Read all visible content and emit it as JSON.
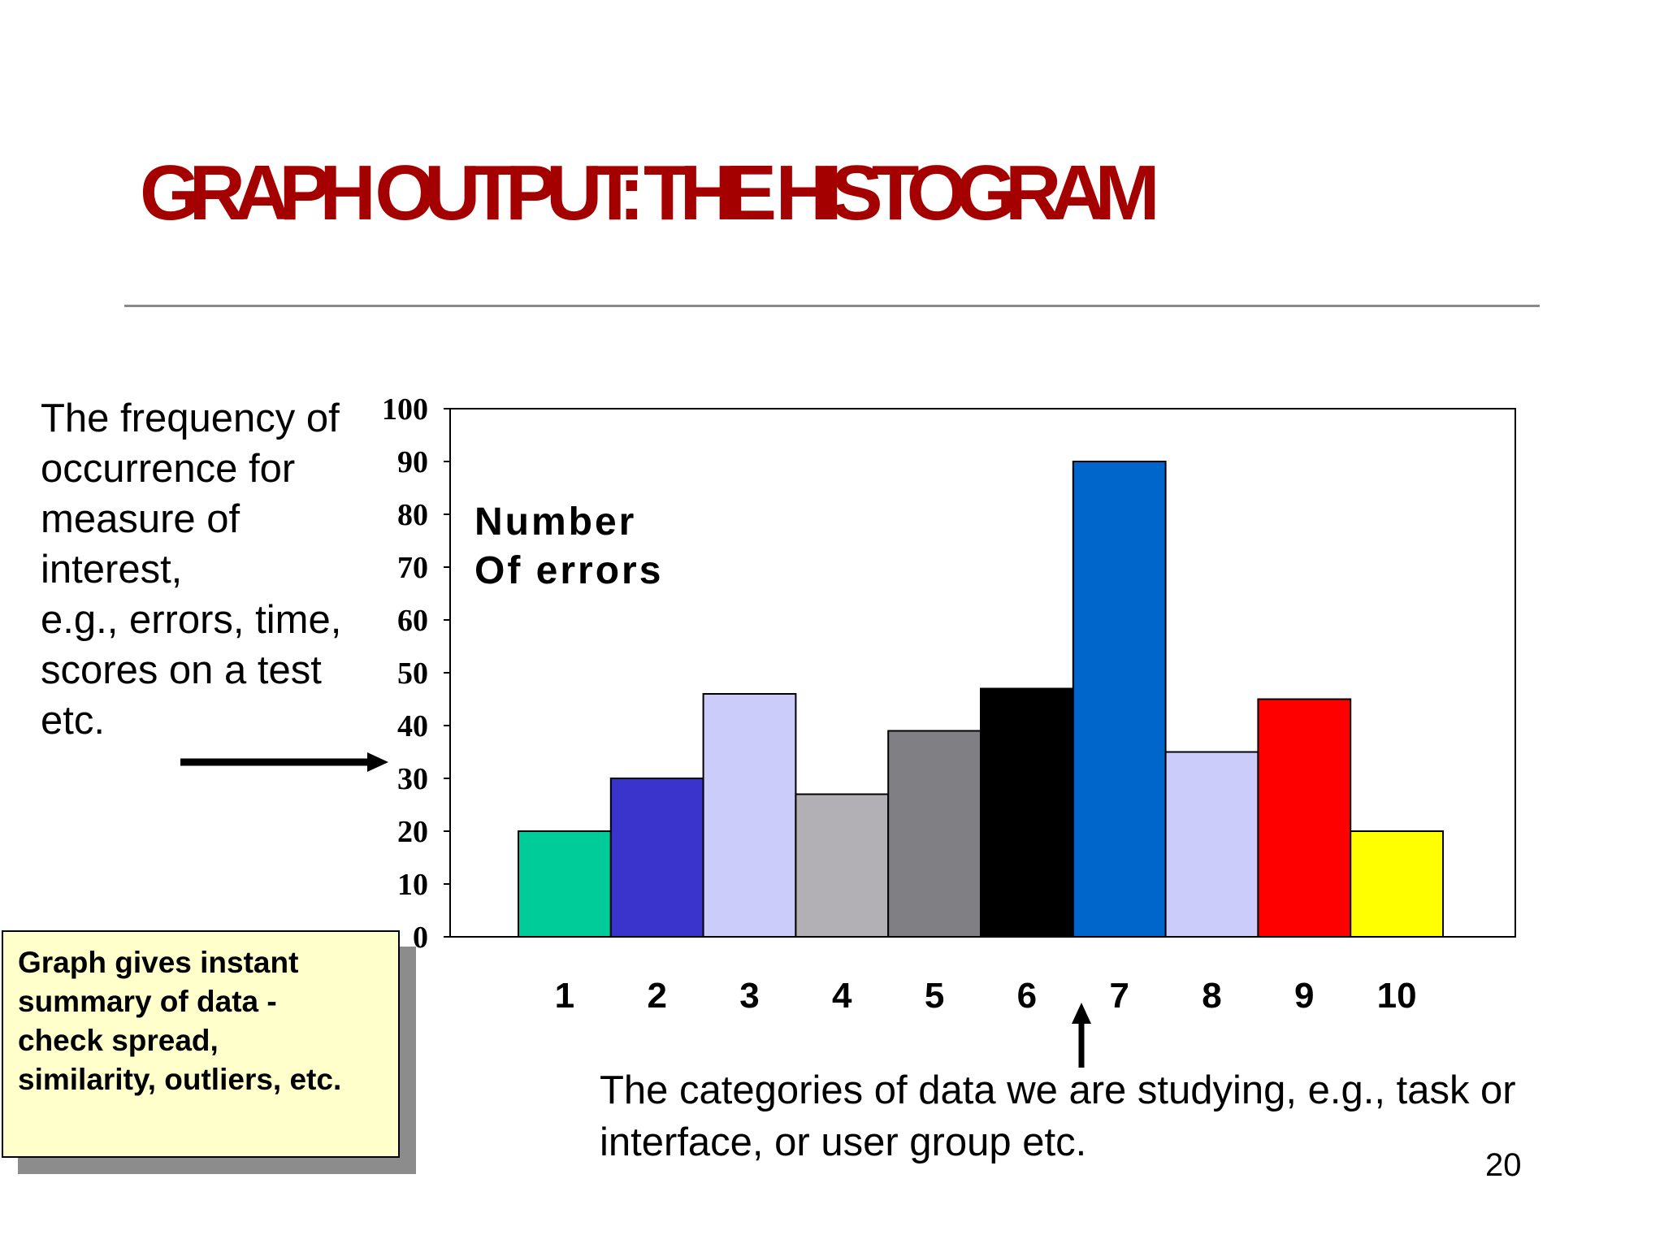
{
  "slide": {
    "title": "GRAPH OUTPUT: THE HISTOGRAM",
    "page_number": "20"
  },
  "annotations": {
    "left_note_lines": [
      "The frequency of",
      "occurrence for",
      "measure of",
      "interest,",
      "e.g., errors, time,",
      "scores on a test",
      "etc."
    ],
    "summary_box_lines": [
      "Graph gives instant",
      "summary of data -",
      "check spread,",
      "similarity, outliers, etc."
    ],
    "bottom_note_lines": [
      "The categories of data we are studying, e.g., task or",
      "interface, or user group etc."
    ]
  },
  "chart_data": {
    "type": "bar",
    "ylabel_lines": [
      "Number",
      "Of errors"
    ],
    "categories": [
      "1",
      "2",
      "3",
      "4",
      "5",
      "6",
      "7",
      "8",
      "9",
      "10"
    ],
    "values": [
      20,
      30,
      46,
      27,
      39,
      47,
      90,
      35,
      45,
      20
    ],
    "colors": [
      "#00cc99",
      "#3a34cc",
      "#ccccfa",
      "#b2b0b4",
      "#807f83",
      "#000000",
      "#0066cc",
      "#ccccfa",
      "#ff0000",
      "#ffff00"
    ],
    "ylim": [
      0,
      100
    ],
    "yticks": [
      0,
      10,
      20,
      30,
      40,
      50,
      60,
      70,
      80,
      90,
      100
    ],
    "grid": false
  }
}
